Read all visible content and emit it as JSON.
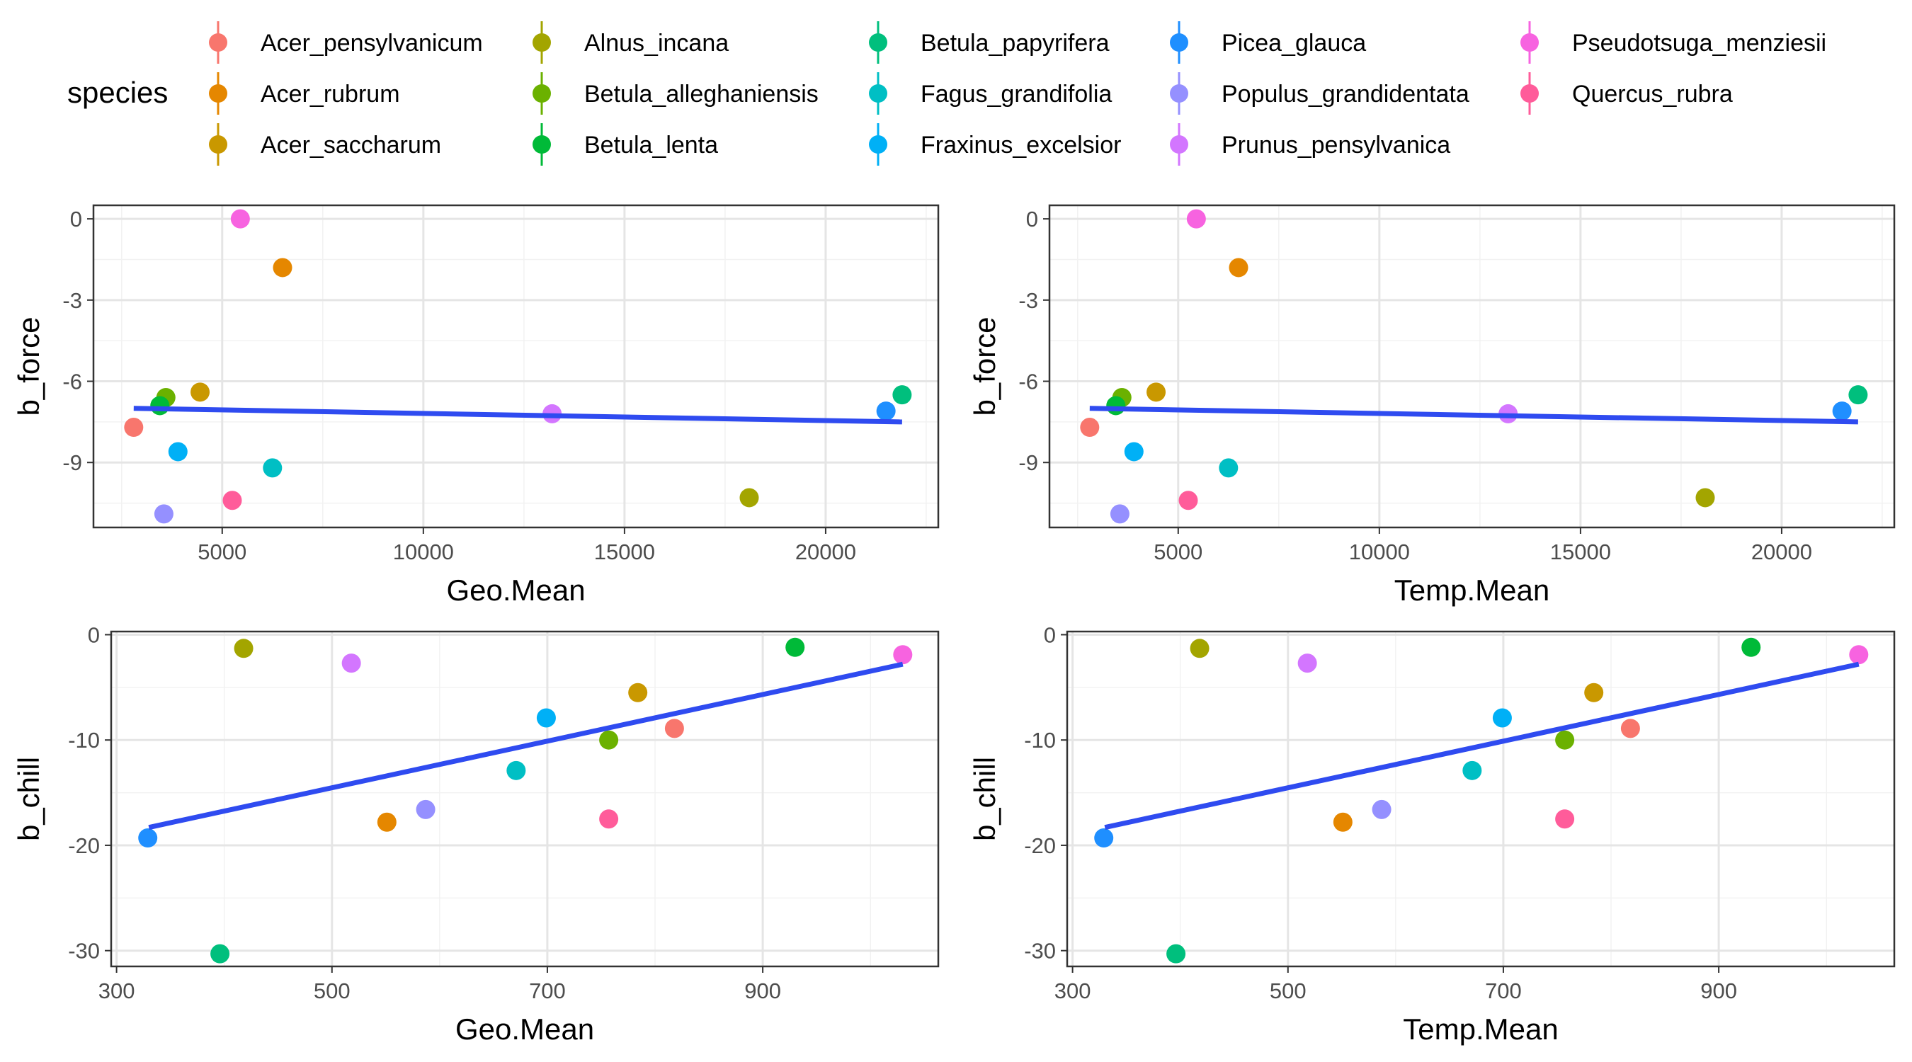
{
  "legend": {
    "title": "species",
    "entries": [
      {
        "label": "Acer_pensylvanicum",
        "color": "#F8766D"
      },
      {
        "label": "Acer_rubrum",
        "color": "#E58700"
      },
      {
        "label": "Acer_saccharum",
        "color": "#C99800"
      },
      {
        "label": "Alnus_incana",
        "color": "#A3A500"
      },
      {
        "label": "Betula_alleghaniensis",
        "color": "#6BB100"
      },
      {
        "label": "Betula_lenta",
        "color": "#00BA38"
      },
      {
        "label": "Betula_papyrifera",
        "color": "#00BF7D"
      },
      {
        "label": "Fagus_grandifolia",
        "color": "#00BFC4"
      },
      {
        "label": "Fraxinus_excelsior",
        "color": "#00B0F6"
      },
      {
        "label": "Picea_glauca",
        "color": "#1F8FFF"
      },
      {
        "label": "Populus_grandidentata",
        "color": "#9590FF"
      },
      {
        "label": "Prunus_pensylvanica",
        "color": "#D376FF"
      },
      {
        "label": "Pseudotsuga_menziesii",
        "color": "#F763E0"
      },
      {
        "label": "Quercus_rubra",
        "color": "#FF5C9A"
      }
    ]
  },
  "style": {
    "line_color": "#2F4BF0",
    "grid_major": "#E5E5E5",
    "grid_minor": "#F2F2F2",
    "panel_border": "#333333"
  },
  "chart_data": [
    {
      "type": "scatter",
      "xlabel": "Geo.Mean",
      "ylabel": "b_force",
      "xlim": [
        1800,
        22800
      ],
      "ylim": [
        -11.4,
        0.5
      ],
      "xticks": [
        5000,
        10000,
        15000,
        20000
      ],
      "xtick_labels": [
        "5000",
        "10000",
        "15000",
        "20000"
      ],
      "yticks": [
        0,
        -3,
        -6,
        -9
      ],
      "ytick_labels": [
        "0",
        "-3",
        "-6",
        "-9"
      ],
      "grid": true,
      "trend": {
        "x": [
          2800,
          21900
        ],
        "y": [
          -7.0,
          -7.5
        ]
      },
      "points": [
        {
          "species": "Acer_pensylvanicum",
          "x": 2800,
          "y": -7.7
        },
        {
          "species": "Acer_rubrum",
          "x": 6500,
          "y": -1.8
        },
        {
          "species": "Acer_saccharum",
          "x": 4450,
          "y": -6.4
        },
        {
          "species": "Alnus_incana",
          "x": 18100,
          "y": -10.3
        },
        {
          "species": "Betula_alleghaniensis",
          "x": 3600,
          "y": -6.6
        },
        {
          "species": "Betula_lenta",
          "x": 3450,
          "y": -6.9
        },
        {
          "species": "Betula_papyrifera",
          "x": 21900,
          "y": -6.5
        },
        {
          "species": "Fagus_grandifolia",
          "x": 6250,
          "y": -9.2
        },
        {
          "species": "Fraxinus_excelsior",
          "x": 3900,
          "y": -8.6
        },
        {
          "species": "Picea_glauca",
          "x": 21500,
          "y": -7.1
        },
        {
          "species": "Populus_grandidentata",
          "x": 3550,
          "y": -10.9
        },
        {
          "species": "Prunus_pensylvanica",
          "x": 13200,
          "y": -7.2
        },
        {
          "species": "Pseudotsuga_menziesii",
          "x": 5450,
          "y": 0.0
        },
        {
          "species": "Quercus_rubra",
          "x": 5250,
          "y": -10.4
        }
      ]
    },
    {
      "type": "scatter",
      "xlabel": "Temp.Mean",
      "ylabel": "b_force",
      "xlim": [
        1800,
        22800
      ],
      "ylim": [
        -11.4,
        0.5
      ],
      "xticks": [
        5000,
        10000,
        15000,
        20000
      ],
      "xtick_labels": [
        "5000",
        "10000",
        "15000",
        "20000"
      ],
      "yticks": [
        0,
        -3,
        -6,
        -9
      ],
      "ytick_labels": [
        "0",
        "-3",
        "-6",
        "-9"
      ],
      "grid": true,
      "trend": {
        "x": [
          2800,
          21900
        ],
        "y": [
          -7.0,
          -7.5
        ]
      },
      "points": [
        {
          "species": "Acer_pensylvanicum",
          "x": 2800,
          "y": -7.7
        },
        {
          "species": "Acer_rubrum",
          "x": 6500,
          "y": -1.8
        },
        {
          "species": "Acer_saccharum",
          "x": 4450,
          "y": -6.4
        },
        {
          "species": "Alnus_incana",
          "x": 18100,
          "y": -10.3
        },
        {
          "species": "Betula_alleghaniensis",
          "x": 3600,
          "y": -6.6
        },
        {
          "species": "Betula_lenta",
          "x": 3450,
          "y": -6.9
        },
        {
          "species": "Betula_papyrifera",
          "x": 21900,
          "y": -6.5
        },
        {
          "species": "Fagus_grandifolia",
          "x": 6250,
          "y": -9.2
        },
        {
          "species": "Fraxinus_excelsior",
          "x": 3900,
          "y": -8.6
        },
        {
          "species": "Picea_glauca",
          "x": 21500,
          "y": -7.1
        },
        {
          "species": "Populus_grandidentata",
          "x": 3550,
          "y": -10.9
        },
        {
          "species": "Prunus_pensylvanica",
          "x": 13200,
          "y": -7.2
        },
        {
          "species": "Pseudotsuga_menziesii",
          "x": 5450,
          "y": 0.0
        },
        {
          "species": "Quercus_rubra",
          "x": 5250,
          "y": -10.4
        }
      ]
    },
    {
      "type": "scatter",
      "xlabel": "Geo.Mean",
      "ylabel": "b_chill",
      "xlim": [
        295,
        1063
      ],
      "ylim": [
        -31.5,
        0.3
      ],
      "xticks": [
        300,
        500,
        700,
        900
      ],
      "xtick_labels": [
        "300",
        "500",
        "700",
        "900"
      ],
      "yticks": [
        0,
        -10,
        -20,
        -30
      ],
      "ytick_labels": [
        "0",
        "-10",
        "-20",
        "-30"
      ],
      "grid": true,
      "trend": {
        "x": [
          330,
          1030
        ],
        "y": [
          -18.3,
          -2.8
        ]
      },
      "points": [
        {
          "species": "Acer_pensylvanicum",
          "x": 818,
          "y": -8.9
        },
        {
          "species": "Acer_rubrum",
          "x": 551,
          "y": -17.8
        },
        {
          "species": "Acer_saccharum",
          "x": 784,
          "y": -5.5
        },
        {
          "species": "Alnus_incana",
          "x": 418,
          "y": -1.3
        },
        {
          "species": "Betula_alleghaniensis",
          "x": 757,
          "y": -10.0
        },
        {
          "species": "Betula_lenta",
          "x": 930,
          "y": -1.2
        },
        {
          "species": "Betula_papyrifera",
          "x": 396,
          "y": -30.3
        },
        {
          "species": "Fagus_grandifolia",
          "x": 671,
          "y": -12.9
        },
        {
          "species": "Fraxinus_excelsior",
          "x": 699,
          "y": -7.9
        },
        {
          "species": "Picea_glauca",
          "x": 329,
          "y": -19.3
        },
        {
          "species": "Populus_grandidentata",
          "x": 587,
          "y": -16.6
        },
        {
          "species": "Prunus_pensylvanica",
          "x": 518,
          "y": -2.7
        },
        {
          "species": "Pseudotsuga_menziesii",
          "x": 1030,
          "y": -1.9
        },
        {
          "species": "Quercus_rubra",
          "x": 757,
          "y": -17.5
        }
      ]
    },
    {
      "type": "scatter",
      "xlabel": "Temp.Mean",
      "ylabel": "b_chill",
      "xlim": [
        295,
        1063
      ],
      "ylim": [
        -31.5,
        0.3
      ],
      "xticks": [
        300,
        500,
        700,
        900
      ],
      "xtick_labels": [
        "300",
        "500",
        "700",
        "900"
      ],
      "yticks": [
        0,
        -10,
        -20,
        -30
      ],
      "ytick_labels": [
        "0",
        "-10",
        "-20",
        "-30"
      ],
      "grid": true,
      "trend": {
        "x": [
          330,
          1030
        ],
        "y": [
          -18.3,
          -2.8
        ]
      },
      "points": [
        {
          "species": "Acer_pensylvanicum",
          "x": 818,
          "y": -8.9
        },
        {
          "species": "Acer_rubrum",
          "x": 551,
          "y": -17.8
        },
        {
          "species": "Acer_saccharum",
          "x": 784,
          "y": -5.5
        },
        {
          "species": "Alnus_incana",
          "x": 418,
          "y": -1.3
        },
        {
          "species": "Betula_alleghaniensis",
          "x": 757,
          "y": -10.0
        },
        {
          "species": "Betula_lenta",
          "x": 930,
          "y": -1.2
        },
        {
          "species": "Betula_papyrifera",
          "x": 396,
          "y": -30.3
        },
        {
          "species": "Fagus_grandifolia",
          "x": 671,
          "y": -12.9
        },
        {
          "species": "Fraxinus_excelsior",
          "x": 699,
          "y": -7.9
        },
        {
          "species": "Picea_glauca",
          "x": 329,
          "y": -19.3
        },
        {
          "species": "Populus_grandidentata",
          "x": 587,
          "y": -16.6
        },
        {
          "species": "Prunus_pensylvanica",
          "x": 518,
          "y": -2.7
        },
        {
          "species": "Pseudotsuga_menziesii",
          "x": 1030,
          "y": -1.9
        },
        {
          "species": "Quercus_rubra",
          "x": 757,
          "y": -17.5
        }
      ]
    }
  ]
}
